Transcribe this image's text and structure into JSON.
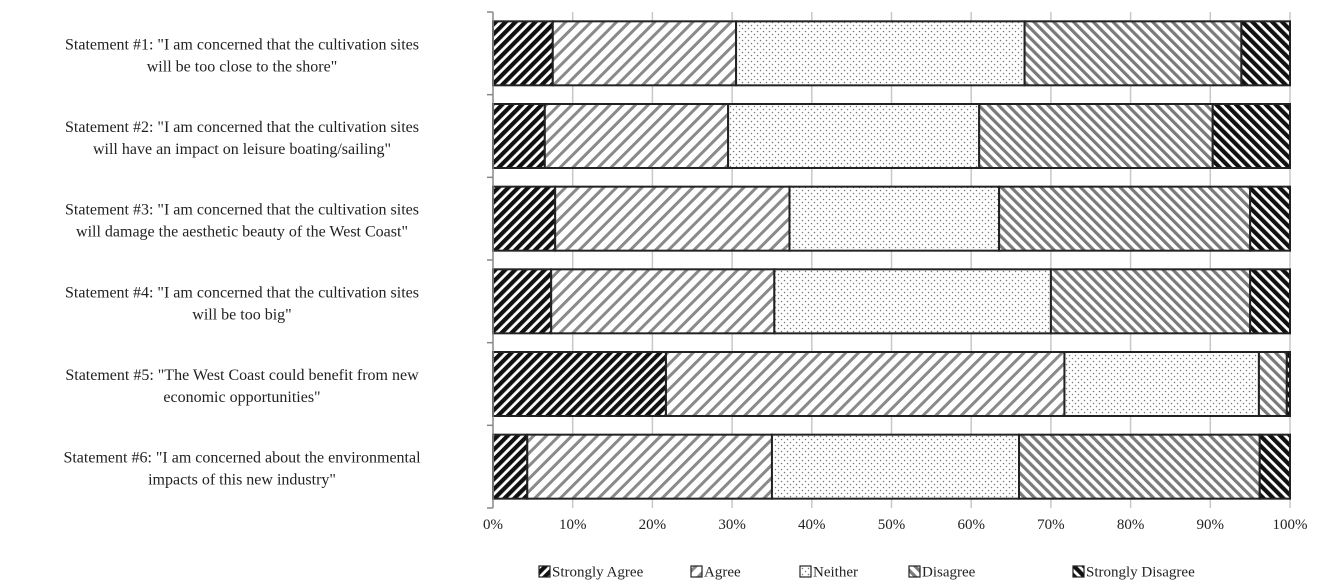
{
  "chart_data": {
    "type": "bar",
    "orientation": "horizontal",
    "stacked": "percent",
    "categories": [
      [
        "Statement #1: \"I am concerned that the cultivation sites",
        "will be too close to the shore\""
      ],
      [
        "Statement  #2: \"I am concerned that the cultivation sites",
        "will have an impact on leisure boating/sailing\""
      ],
      [
        "Statement #3: \"I am concerned that the cultivation sites",
        "will damage the aesthetic beauty of the West Coast\""
      ],
      [
        "Statement #4: \"I am concerned that the cultivation sites",
        "will be too big\""
      ],
      [
        "Statement #5: \"The West Coast could benefit from new",
        "economic opportunities\""
      ],
      [
        "Statement #6: \"I am concerned about the environmental",
        "impacts of this new industry\""
      ]
    ],
    "series": [
      {
        "name": "Strongly Agree",
        "pattern": "dense-dark",
        "values": [
          7.5,
          6.5,
          7.8,
          7.3,
          21.7,
          4.3
        ]
      },
      {
        "name": "Agree",
        "pattern": "sparse-gray",
        "values": [
          23.0,
          23.0,
          29.4,
          28.0,
          50.0,
          30.7
        ]
      },
      {
        "name": "Neither",
        "pattern": "dots",
        "values": [
          36.2,
          31.5,
          26.3,
          34.7,
          24.4,
          31.0
        ]
      },
      {
        "name": "Disagree",
        "pattern": "dense-gray",
        "values": [
          27.2,
          29.3,
          31.5,
          25.0,
          3.5,
          30.2
        ]
      },
      {
        "name": "Strongly Disagree",
        "pattern": "dense-dark-r",
        "values": [
          6.1,
          9.7,
          5.0,
          5.0,
          0.4,
          3.8
        ]
      }
    ],
    "x_ticks": [
      "0%",
      "10%",
      "20%",
      "30%",
      "40%",
      "50%",
      "60%",
      "70%",
      "80%",
      "90%",
      "100%"
    ],
    "xlim": [
      0,
      100
    ],
    "grid": true,
    "legend_position": "bottom"
  }
}
